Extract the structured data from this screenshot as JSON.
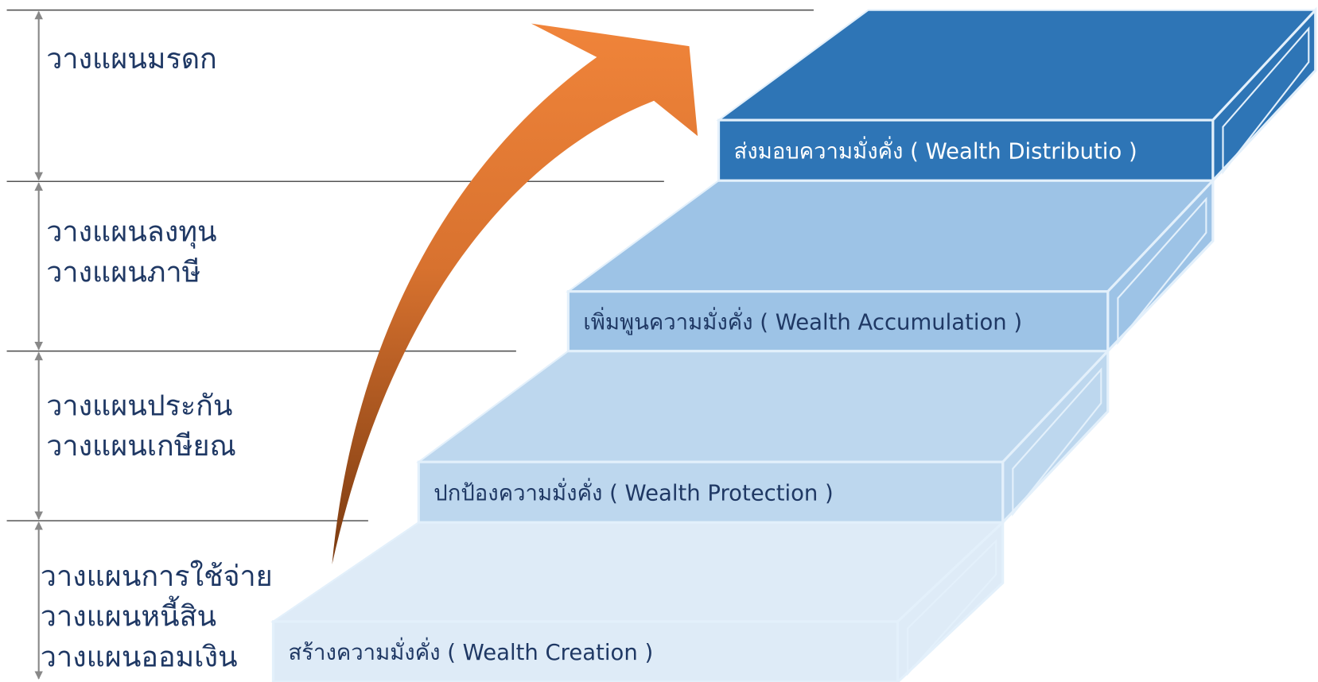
{
  "levels": [
    {
      "lines": [
        "วางแผนมรดก"
      ]
    },
    {
      "lines": [
        "วางแผนลงทุน",
        "วางแผนภาษี"
      ]
    },
    {
      "lines": [
        "วางแผนประกัน",
        "วางแผนเกษียณ"
      ]
    },
    {
      "lines": [
        "วางแผนการใช้จ่าย",
        "วางแผนหนี้สิน",
        "วางแผนออมเงิน"
      ]
    }
  ],
  "steps": [
    "ส่งมอบความมั่งคั่ง ( Wealth Distributio )",
    "เพิ่มพูนความมั่งคั่ง ( Wealth Accumulation )",
    "ปกป้องความมั่งคั่ง ( Wealth Protection )",
    "สร้างความมั่งคั่ง ( Wealth Creation )"
  ]
}
